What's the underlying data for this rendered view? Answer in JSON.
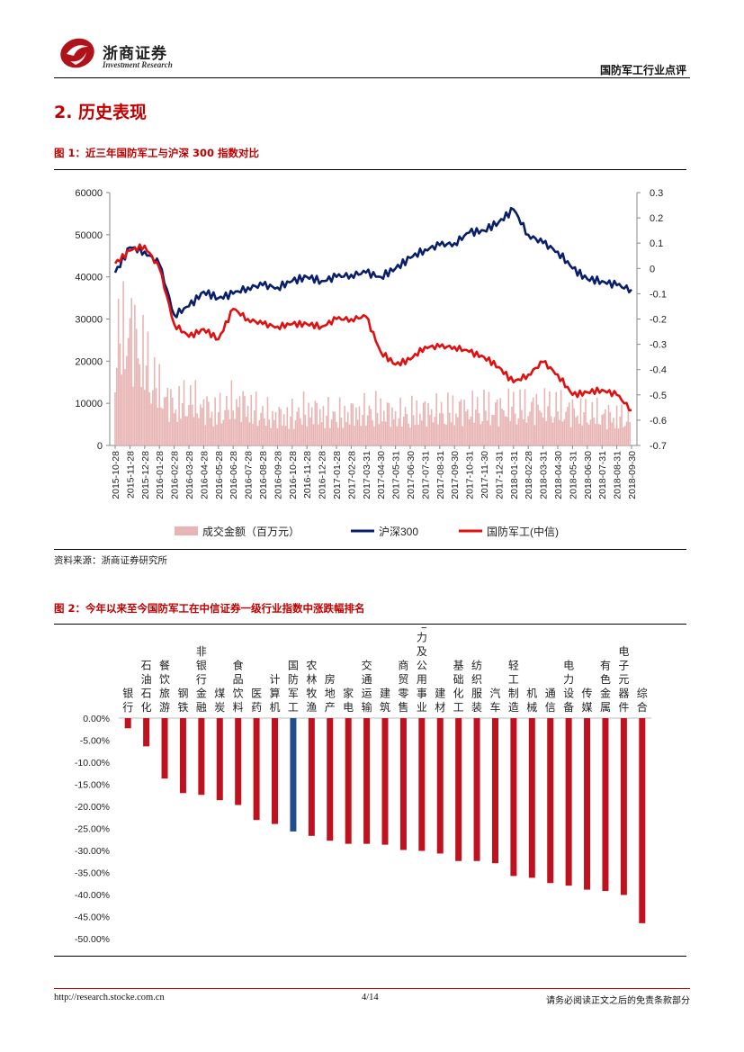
{
  "header": {
    "logo_cn": "浙商证券",
    "logo_en": "Investment Research",
    "report_type": "国防军工行业点评"
  },
  "section": {
    "title": "2. 历史表现"
  },
  "figure1": {
    "title": "图 1：近三年国防军工与沪深 300 指数对比",
    "source": "资料来源：浙商证券研究所"
  },
  "figure2": {
    "title": "图 2：今年以来至今国防军工在中信证券一级行业指数中涨跌幅排名"
  },
  "footer": {
    "url": "http://research.stocke.com.cn",
    "page": "4/14",
    "disclaimer": "请务必阅读正文之后的免责条款部分"
  },
  "colors": {
    "accent_red": "#c00000",
    "hs300": "#0a1f6b",
    "defense": "#e01010",
    "volume": "#e8b4b4",
    "bar_red": "#c0111f",
    "bar_blue": "#1f4e8c"
  },
  "chart_data": [
    {
      "type": "line",
      "title": "近三年国防军工与沪深 300 指数对比",
      "x_ticks": [
        "2015-10-28",
        "2015-11-28",
        "2015-12-28",
        "2016-01-28",
        "2016-02-28",
        "2016-03-28",
        "2016-04-28",
        "2016-05-28",
        "2016-06-28",
        "2016-07-28",
        "2016-08-28",
        "2016-09-28",
        "2016-10-28",
        "2016-11-28",
        "2016-12-28",
        "2017-01-28",
        "2017-02-28",
        "2017-03-31",
        "2017-04-30",
        "2017-05-31",
        "2017-06-30",
        "2017-07-31",
        "2017-08-31",
        "2017-09-30",
        "2017-10-31",
        "2017-11-30",
        "2017-12-31",
        "2018-01-31",
        "2018-02-28",
        "2018-03-31",
        "2018-04-30",
        "2018-05-31",
        "2018-06-30",
        "2018-07-31",
        "2018-08-31",
        "2018-09-30"
      ],
      "y_left": {
        "ticks": [
          "60000",
          "50000",
          "40000",
          "30000",
          "20000",
          "10000",
          "0"
        ],
        "range": [
          0,
          60000
        ]
      },
      "y_right": {
        "ticks": [
          "0.3",
          "0.2",
          "0.1",
          "0",
          "-0.1",
          "-0.2",
          "-0.3",
          "-0.4",
          "-0.5",
          "-0.6",
          "-0.7"
        ],
        "range": [
          -0.7,
          0.3
        ]
      },
      "legend": [
        "成交金额（百万元）",
        "沪深300",
        "国防军工(中信)"
      ],
      "series": [
        {
          "name": "沪深300",
          "axis": "left",
          "values": [
            41000,
            47000,
            46000,
            43000,
            31000,
            33000,
            36500,
            35000,
            36000,
            37500,
            38000,
            37500,
            39000,
            40000,
            39000,
            40000,
            40500,
            41000,
            40000,
            42000,
            44500,
            46500,
            47500,
            48000,
            50500,
            51000,
            53000,
            56000,
            50000,
            48000,
            46000,
            42000,
            39500,
            39000,
            38000,
            37000
          ]
        },
        {
          "name": "国防军工(中信)",
          "axis": "right",
          "values": [
            0.02,
            0.07,
            0.09,
            0.0,
            -0.22,
            -0.27,
            -0.24,
            -0.28,
            -0.16,
            -0.2,
            -0.22,
            -0.23,
            -0.22,
            -0.22,
            -0.23,
            -0.2,
            -0.2,
            -0.19,
            -0.33,
            -0.38,
            -0.36,
            -0.31,
            -0.31,
            -0.31,
            -0.33,
            -0.35,
            -0.39,
            -0.45,
            -0.42,
            -0.37,
            -0.42,
            -0.5,
            -0.49,
            -0.48,
            -0.5,
            -0.56
          ]
        },
        {
          "name": "成交金额（百万元）",
          "axis": "left",
          "values": [
            28000,
            33000,
            24000,
            15000,
            11000,
            13000,
            10500,
            9500,
            12000,
            11000,
            9000,
            8000,
            8500,
            10000,
            9000,
            8500,
            9000,
            9500,
            10000,
            8500,
            9000,
            9500,
            9500,
            10000,
            10000,
            10500,
            10000,
            11000,
            10500,
            11000,
            10500,
            9500,
            9000,
            8500,
            8000,
            7500
          ]
        }
      ]
    },
    {
      "type": "bar",
      "title": "今年以来至今国防军工在中信证券一级行业指数中涨跌幅排名",
      "categories": [
        "银行",
        "石油石化",
        "餐饮旅游",
        "钢铁",
        "非银行金融",
        "煤炭",
        "食品饮料",
        "医药",
        "计算机",
        "国防军工",
        "农林牧渔",
        "房地产",
        "家电",
        "交通运输",
        "建筑",
        "商贸零售",
        "电力及公用事业",
        "建材",
        "基础化工",
        "纺织服装",
        "汽车",
        "轻工制造",
        "机械",
        "通信",
        "电力设备",
        "传媒",
        "有色金属",
        "电子元器件",
        "综合"
      ],
      "values": [
        -2.3,
        -6.4,
        -13.7,
        -17.0,
        -17.4,
        -18.6,
        -19.7,
        -23.1,
        -24.0,
        -25.7,
        -26.7,
        -27.8,
        -28.5,
        -28.5,
        -28.7,
        -29.9,
        -30.1,
        -30.7,
        -32.4,
        -32.4,
        -32.9,
        -35.8,
        -36.2,
        -37.4,
        -38.0,
        -38.9,
        -39.2,
        -40.1,
        -46.5
      ],
      "highlight": "国防军工",
      "y_ticks": [
        "0.00%",
        "-5.00%",
        "-10.00%",
        "-15.00%",
        "-20.00%",
        "-25.00%",
        "-30.00%",
        "-35.00%",
        "-40.00%",
        "-45.00%",
        "-50.00%"
      ],
      "ylim": [
        -50,
        0
      ]
    }
  ]
}
